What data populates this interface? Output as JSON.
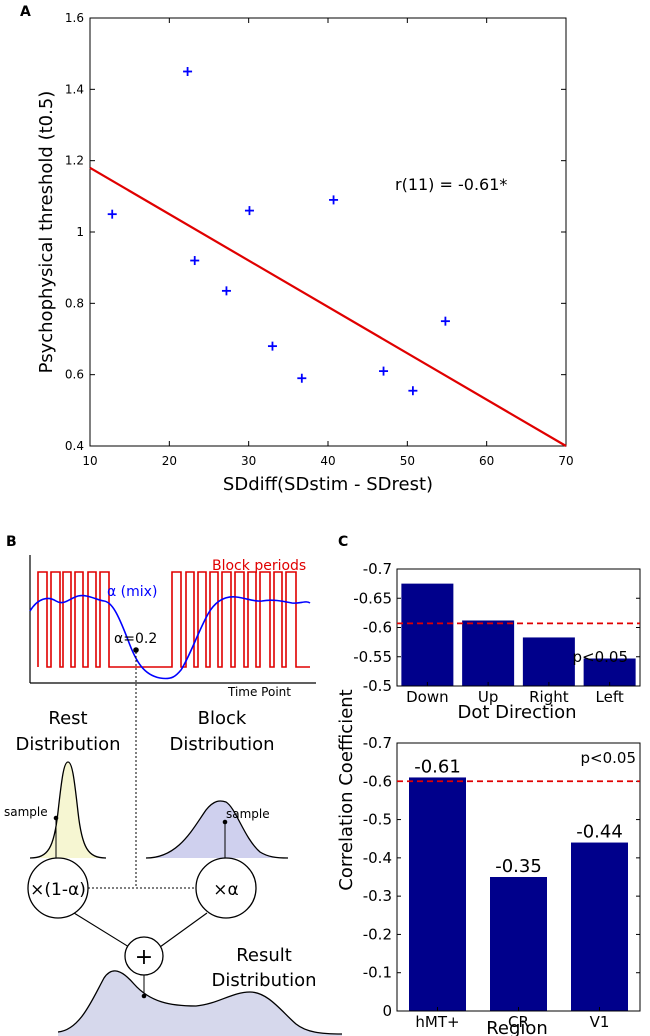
{
  "chart_data": [
    {
      "id": "A",
      "type": "scatter",
      "panel_label": "A",
      "xlabel": "SDdiff(SDstim - SDrest)",
      "ylabel": "Psychophysical threshold (t0.5)",
      "xlim": [
        10,
        70
      ],
      "ylim": [
        0.4,
        1.6
      ],
      "xticks": [
        10,
        20,
        30,
        40,
        50,
        60,
        70
      ],
      "yticks": [
        0.4,
        0.6,
        0.8,
        1,
        1.2,
        1.4,
        1.6
      ],
      "ytick_labels": [
        "0.4",
        "0.6",
        "0.8",
        "1",
        "1.2",
        "1.4",
        "1.6"
      ],
      "points": [
        {
          "x": 12.8,
          "y": 1.05
        },
        {
          "x": 22.3,
          "y": 1.45
        },
        {
          "x": 23.2,
          "y": 0.92
        },
        {
          "x": 27.2,
          "y": 0.835
        },
        {
          "x": 30.1,
          "y": 1.06
        },
        {
          "x": 33.0,
          "y": 0.68
        },
        {
          "x": 36.7,
          "y": 0.59
        },
        {
          "x": 40.7,
          "y": 1.09
        },
        {
          "x": 47.0,
          "y": 0.61
        },
        {
          "x": 50.7,
          "y": 0.555
        },
        {
          "x": 54.8,
          "y": 0.75
        }
      ],
      "fit_line": {
        "x": [
          10,
          70
        ],
        "y": [
          1.18,
          0.4
        ]
      },
      "annotation": "r(11) = -0.61*",
      "colors": {
        "points": "#0000ff",
        "line": "#e00000"
      }
    },
    {
      "id": "C1",
      "type": "bar",
      "panel_label": "C",
      "xlabel": "Dot Direction",
      "ylabel": "Correlation Coefficient",
      "categories": [
        "Down",
        "Up",
        "Right",
        "Left"
      ],
      "values": [
        -0.675,
        -0.612,
        -0.583,
        -0.547
      ],
      "ylim": [
        -0.5,
        -0.7
      ],
      "yticks": [
        -0.5,
        -0.55,
        -0.6,
        -0.65,
        -0.7
      ],
      "ytick_labels": [
        "-0.5",
        "-0.55",
        "-0.6",
        "-0.65",
        "-0.7"
      ],
      "threshold": {
        "value": -0.607,
        "label": "p<0.05"
      },
      "colors": {
        "bar": "#00008b",
        "threshold": "#e00000"
      }
    },
    {
      "id": "C2",
      "type": "bar",
      "xlabel": "Region",
      "categories": [
        "hMT+",
        "CR",
        "V1"
      ],
      "values": [
        -0.61,
        -0.35,
        -0.44
      ],
      "data_labels": [
        "-0.61",
        "-0.35",
        "-0.44"
      ],
      "ylim": [
        0,
        -0.7
      ],
      "yticks": [
        0,
        -0.1,
        -0.2,
        -0.3,
        -0.4,
        -0.5,
        -0.6,
        -0.7
      ],
      "ytick_labels": [
        "0",
        "-0.1",
        "-0.2",
        "-0.3",
        "-0.4",
        "-0.5",
        "-0.6",
        "-0.7"
      ],
      "threshold": {
        "value": -0.6,
        "label": "p<0.05"
      },
      "colors": {
        "bar": "#00008b",
        "threshold": "#e00000"
      }
    }
  ],
  "panel_b": {
    "panel_label": "B",
    "block_periods_label": "Block periods",
    "mix_label": "α (mix)",
    "alpha_point_label": "α=0.2",
    "time_axis_label": "Time Point",
    "rest_title": [
      "Rest",
      "Distribution"
    ],
    "block_title": [
      "Block",
      "Distribution"
    ],
    "sample_label": "sample",
    "rest_multiplier": "×(1-α)",
    "block_multiplier": "×α",
    "sum_symbol": "+",
    "result_title": [
      "Result",
      "Distribution"
    ],
    "colors": {
      "block": "#e00000",
      "mix": "#0000ff",
      "rest_fill": "#f6f6d2",
      "block_fill": "#cfd0ee",
      "result_fill": "#d6d8ec"
    }
  }
}
